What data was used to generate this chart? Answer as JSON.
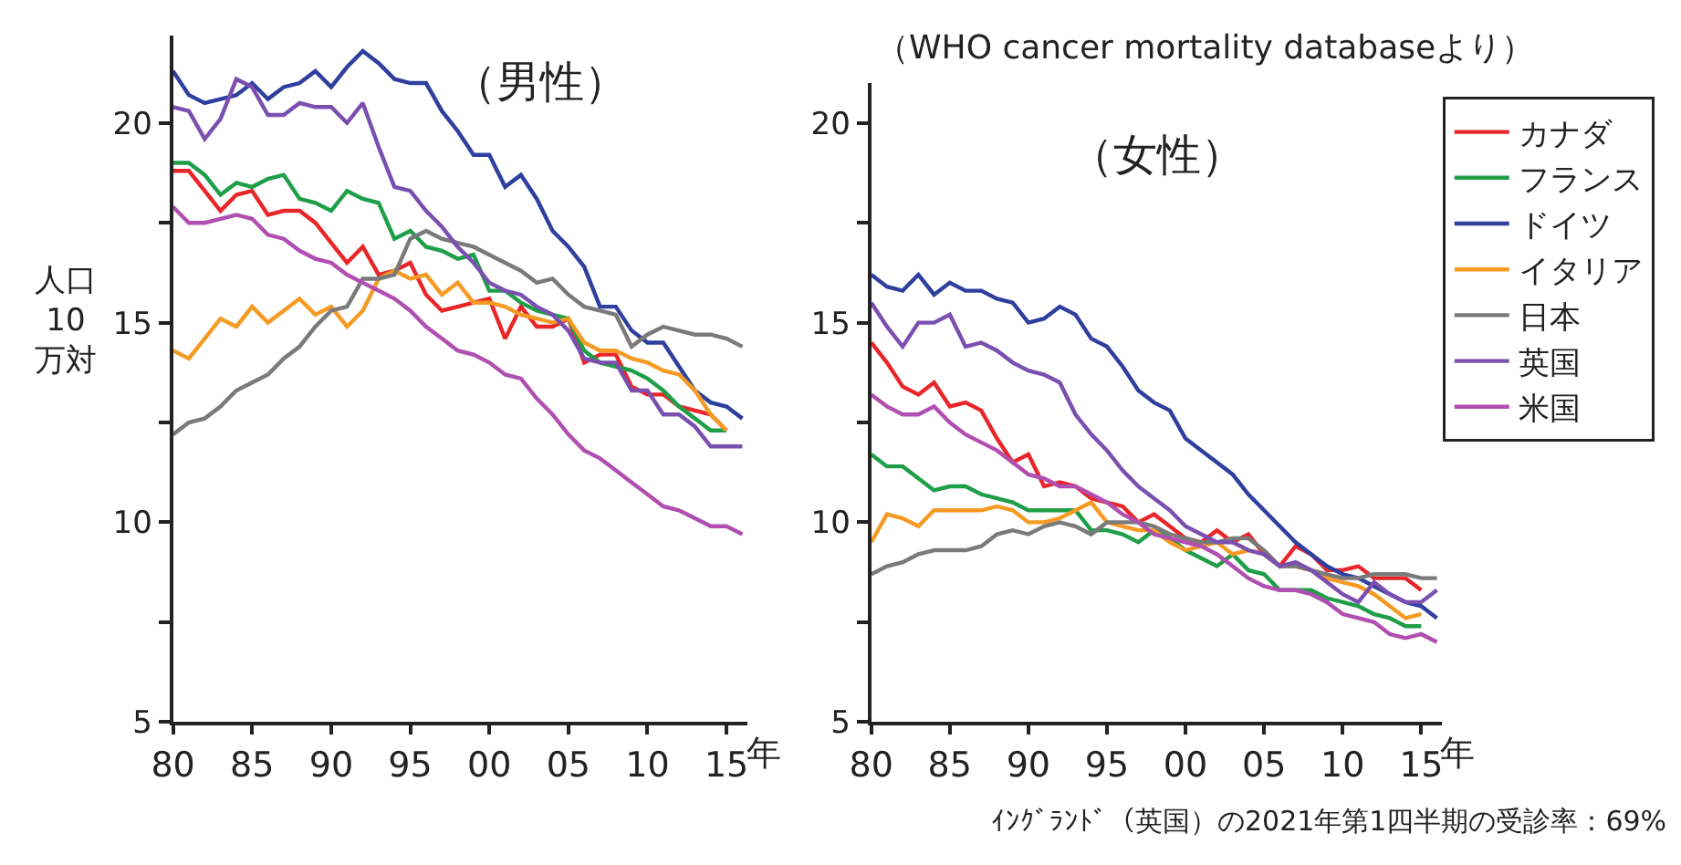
{
  "chart_data": [
    {
      "type": "line",
      "title": "（男性）",
      "ylabel": "人口\n10\n万対",
      "xlabel": "年",
      "marker": "none",
      "line_style": "solid",
      "x": [
        1980,
        1981,
        1982,
        1983,
        1984,
        1985,
        1986,
        1987,
        1988,
        1989,
        1990,
        1991,
        1992,
        1993,
        1994,
        1995,
        1996,
        1997,
        1998,
        1999,
        2000,
        2001,
        2002,
        2003,
        2004,
        2005,
        2006,
        2007,
        2008,
        2009,
        2010,
        2011,
        2012,
        2013,
        2014,
        2015,
        2016
      ],
      "xlim": [
        1980,
        2016.3
      ],
      "xticks": [
        {
          "value": 1980,
          "label": "80"
        },
        {
          "value": 1985,
          "label": "85"
        },
        {
          "value": 1990,
          "label": "90"
        },
        {
          "value": 1995,
          "label": "95"
        },
        {
          "value": 2000,
          "label": "00"
        },
        {
          "value": 2005,
          "label": "05"
        },
        {
          "value": 2010,
          "label": "10"
        },
        {
          "value": 2015,
          "label": "15"
        }
      ],
      "ylim": [
        5,
        22.2
      ],
      "yticks": [
        5,
        {
          "value": 7.5,
          "label": null
        },
        10,
        {
          "value": 12.5,
          "label": null
        },
        15,
        {
          "value": 17.5,
          "label": null
        },
        20
      ],
      "series": [
        {
          "color": "#e8262a",
          "values": [
            18.8,
            18.8,
            18.3,
            17.8,
            18.2,
            18.3,
            17.7,
            17.8,
            17.8,
            17.5,
            17.0,
            16.5,
            16.9,
            16.2,
            16.3,
            16.5,
            15.7,
            15.3,
            15.4,
            15.5,
            15.6,
            14.6,
            15.4,
            14.9,
            14.9,
            15.1,
            14.0,
            14.2,
            14.2,
            13.4,
            13.2,
            13.2,
            12.9,
            12.8,
            12.7,
            12.3,
            null
          ]
        },
        {
          "color": "#1f9e48",
          "values": [
            19.0,
            19.0,
            18.7,
            18.2,
            18.5,
            18.4,
            18.6,
            18.7,
            18.1,
            18.0,
            17.8,
            18.3,
            18.1,
            18.0,
            17.1,
            17.3,
            16.9,
            16.8,
            16.6,
            16.7,
            15.8,
            15.8,
            15.5,
            15.3,
            15.2,
            15.1,
            14.3,
            14.0,
            13.9,
            13.8,
            13.6,
            13.3,
            12.9,
            12.6,
            12.3,
            12.3,
            null
          ]
        },
        {
          "color": "#2e3f9e",
          "values": [
            21.3,
            20.7,
            20.5,
            20.6,
            20.7,
            21.0,
            20.6,
            20.9,
            21.0,
            21.3,
            20.9,
            21.4,
            21.8,
            21.5,
            21.1,
            21.0,
            21.0,
            20.3,
            19.8,
            19.2,
            19.2,
            18.4,
            18.7,
            18.1,
            17.3,
            16.9,
            16.4,
            15.4,
            15.4,
            14.8,
            14.5,
            14.5,
            13.9,
            13.3,
            13.0,
            12.9,
            12.6
          ]
        },
        {
          "color": "#f59a23",
          "values": [
            14.3,
            14.1,
            14.6,
            15.1,
            14.9,
            15.4,
            15.0,
            15.3,
            15.6,
            15.2,
            15.4,
            14.9,
            15.3,
            16.1,
            16.3,
            16.1,
            16.2,
            15.7,
            16.0,
            15.5,
            15.5,
            15.4,
            15.2,
            15.1,
            15.0,
            15.1,
            14.5,
            14.3,
            14.3,
            14.1,
            14.0,
            13.8,
            13.7,
            13.3,
            12.7,
            12.3,
            null
          ]
        },
        {
          "color": "#7a7a7a",
          "values": [
            12.2,
            12.5,
            12.6,
            12.9,
            13.3,
            13.5,
            13.7,
            14.1,
            14.4,
            14.9,
            15.3,
            15.4,
            16.1,
            16.1,
            16.2,
            17.1,
            17.3,
            17.1,
            17.0,
            16.9,
            16.7,
            16.5,
            16.3,
            16.0,
            16.1,
            15.7,
            15.4,
            15.3,
            15.2,
            14.4,
            14.7,
            14.9,
            14.8,
            14.7,
            14.7,
            14.6,
            14.4
          ]
        },
        {
          "color": "#7b4fb0",
          "values": [
            20.4,
            20.3,
            19.6,
            20.1,
            21.1,
            20.9,
            20.2,
            20.2,
            20.5,
            20.4,
            20.4,
            20.0,
            20.5,
            19.4,
            18.4,
            18.3,
            17.8,
            17.4,
            16.9,
            16.5,
            16.0,
            15.8,
            15.7,
            15.4,
            15.2,
            14.8,
            14.1,
            14.0,
            14.0,
            13.3,
            13.3,
            12.7,
            12.7,
            12.4,
            11.9,
            11.9,
            11.9
          ]
        },
        {
          "color": "#b04fb0",
          "values": [
            17.9,
            17.5,
            17.5,
            17.6,
            17.7,
            17.6,
            17.2,
            17.1,
            16.8,
            16.6,
            16.5,
            16.2,
            16.0,
            15.8,
            15.6,
            15.3,
            14.9,
            14.6,
            14.3,
            14.2,
            14.0,
            13.7,
            13.6,
            13.1,
            12.7,
            12.2,
            11.8,
            11.6,
            11.3,
            11.0,
            10.7,
            10.4,
            10.3,
            10.1,
            9.9,
            9.9,
            9.7
          ]
        }
      ]
    },
    {
      "type": "line",
      "title": "（女性）",
      "subtitle": "（WHO cancer mortality databaseより）",
      "xlabel": "年",
      "legend": "top right",
      "marker": "none",
      "line_style": "solid",
      "x": [
        1980,
        1981,
        1982,
        1983,
        1984,
        1985,
        1986,
        1987,
        1988,
        1989,
        1990,
        1991,
        1992,
        1993,
        1994,
        1995,
        1996,
        1997,
        1998,
        1999,
        2000,
        2001,
        2002,
        2003,
        2004,
        2005,
        2006,
        2007,
        2008,
        2009,
        2010,
        2011,
        2012,
        2013,
        2014,
        2015,
        2016
      ],
      "xlim": [
        1980,
        2016.3
      ],
      "xticks": [
        {
          "value": 1980,
          "label": "80"
        },
        {
          "value": 1985,
          "label": "85"
        },
        {
          "value": 1990,
          "label": "90"
        },
        {
          "value": 1995,
          "label": "95"
        },
        {
          "value": 2000,
          "label": "00"
        },
        {
          "value": 2005,
          "label": "05"
        },
        {
          "value": 2010,
          "label": "10"
        },
        {
          "value": 2015,
          "label": "15"
        }
      ],
      "ylim": [
        5,
        21
      ],
      "yticks": [
        5,
        {
          "value": 7.5,
          "label": null
        },
        10,
        {
          "value": 12.5,
          "label": null
        },
        15,
        {
          "value": 17.5,
          "label": null
        },
        20
      ],
      "series": [
        {
          "name": "カナダ",
          "color": "#e8262a",
          "values": [
            14.5,
            14.0,
            13.4,
            13.2,
            13.5,
            12.9,
            13.0,
            12.8,
            12.1,
            11.5,
            11.7,
            10.9,
            11.0,
            10.9,
            10.6,
            10.5,
            10.4,
            10.0,
            10.2,
            9.9,
            9.6,
            9.5,
            9.8,
            9.5,
            9.7,
            9.2,
            8.9,
            9.4,
            9.2,
            8.8,
            8.8,
            8.9,
            8.6,
            8.6,
            8.6,
            8.3,
            null
          ]
        },
        {
          "name": "フランス",
          "color": "#1f9e48",
          "values": [
            11.7,
            11.4,
            11.4,
            11.1,
            10.8,
            10.9,
            10.9,
            10.7,
            10.6,
            10.5,
            10.3,
            10.3,
            10.3,
            10.3,
            9.8,
            9.8,
            9.7,
            9.5,
            9.8,
            9.6,
            9.3,
            9.1,
            8.9,
            9.2,
            8.8,
            8.7,
            8.3,
            8.3,
            8.3,
            8.1,
            8.0,
            7.9,
            7.7,
            7.6,
            7.4,
            7.4,
            null
          ]
        },
        {
          "name": "ドイツ",
          "color": "#2e3f9e",
          "values": [
            16.2,
            15.9,
            15.8,
            16.2,
            15.7,
            16.0,
            15.8,
            15.8,
            15.6,
            15.5,
            15.0,
            15.1,
            15.4,
            15.2,
            14.6,
            14.4,
            13.9,
            13.3,
            13.0,
            12.8,
            12.1,
            11.8,
            11.5,
            11.2,
            10.7,
            10.3,
            9.9,
            9.5,
            9.2,
            8.9,
            8.7,
            8.6,
            8.4,
            8.2,
            8.0,
            7.9,
            7.6
          ]
        },
        {
          "name": "イタリア",
          "color": "#f59a23",
          "values": [
            9.5,
            10.2,
            10.1,
            9.9,
            10.3,
            10.3,
            10.3,
            10.3,
            10.4,
            10.3,
            10.0,
            10.0,
            10.1,
            10.3,
            10.5,
            10.0,
            9.9,
            9.8,
            9.8,
            9.5,
            9.3,
            9.4,
            9.5,
            9.2,
            9.3,
            9.2,
            8.9,
            8.9,
            8.8,
            8.6,
            8.5,
            8.4,
            8.2,
            7.9,
            7.6,
            7.7,
            null
          ]
        },
        {
          "name": "日本",
          "color": "#7a7a7a",
          "values": [
            8.7,
            8.9,
            9.0,
            9.2,
            9.3,
            9.3,
            9.3,
            9.4,
            9.7,
            9.8,
            9.7,
            9.9,
            10.0,
            9.9,
            9.7,
            10.0,
            10.0,
            10.0,
            9.9,
            9.7,
            9.6,
            9.5,
            9.5,
            9.6,
            9.6,
            9.3,
            8.9,
            8.9,
            8.8,
            8.7,
            8.6,
            8.6,
            8.7,
            8.7,
            8.7,
            8.6,
            8.6
          ]
        },
        {
          "name": "英国",
          "color": "#7b4fb0",
          "values": [
            15.5,
            14.9,
            14.4,
            15.0,
            15.0,
            15.2,
            14.4,
            14.5,
            14.3,
            14.0,
            13.8,
            13.7,
            13.5,
            12.7,
            12.2,
            11.8,
            11.3,
            10.9,
            10.6,
            10.3,
            9.9,
            9.7,
            9.5,
            9.5,
            9.3,
            9.2,
            8.9,
            9.0,
            8.8,
            8.5,
            8.2,
            8.0,
            8.5,
            8.2,
            8.0,
            8.0,
            8.3
          ]
        },
        {
          "name": "米国",
          "color": "#b04fb0",
          "values": [
            13.2,
            12.9,
            12.7,
            12.7,
            12.9,
            12.5,
            12.2,
            12.0,
            11.8,
            11.5,
            11.2,
            11.1,
            10.9,
            10.9,
            10.7,
            10.5,
            10.2,
            10.0,
            9.7,
            9.6,
            9.5,
            9.4,
            9.2,
            8.9,
            8.6,
            8.4,
            8.3,
            8.3,
            8.2,
            8.0,
            7.7,
            7.6,
            7.5,
            7.2,
            7.1,
            7.2,
            7.0
          ]
        }
      ],
      "annotations": [
        "ｲﾝｸﾞﾗﾝﾄﾞ（英国）の2021年第1四半期の受診率：69%"
      ]
    }
  ]
}
